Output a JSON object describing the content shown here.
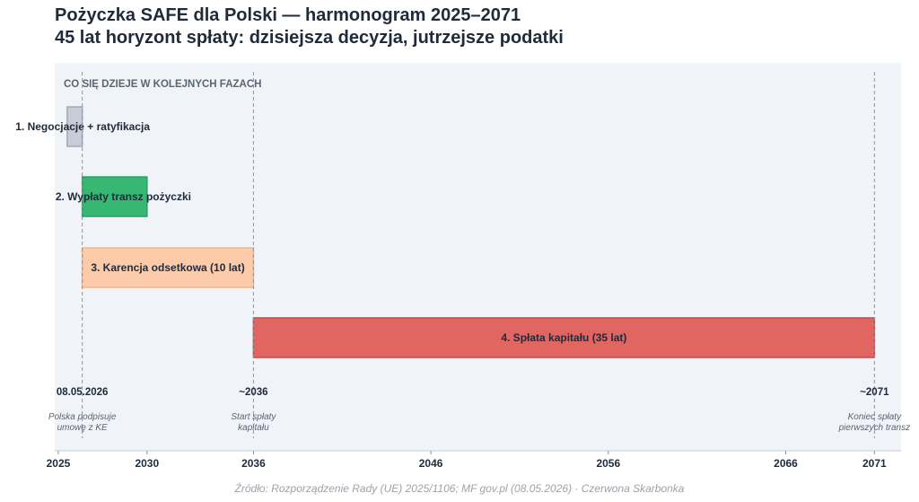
{
  "title_line1": "Pożyczka SAFE dla Polski — harmonogram 2025–2071",
  "title_line2": "45 lat horyzont spłaty: dzisiejsza decyzja, jutrzejsze podatki",
  "source": "Źródło: Rozporządzenie Rady (UE) 2025/1106; MF gov.pl (08.05.2026) · Czerwona Skarbonka",
  "chart_data": {
    "type": "gantt",
    "section_label": "CO SIĘ DZIEJE W KOLEJNYCH FAZACH",
    "x_range": [
      2024.8,
      2072.5
    ],
    "x_ticks": [
      2025,
      2030,
      2036,
      2046,
      2056,
      2066,
      2071
    ],
    "phases": [
      {
        "label": "1. Negocjacje + ratyfikacja",
        "start": 2025.5,
        "end": 2026.35,
        "color": "#c3c9d3",
        "label_position": "left"
      },
      {
        "label": "2. Wypłaty transz pożyczki",
        "start": 2026.35,
        "end": 2030,
        "color": "#2db56c",
        "label_position": "left"
      },
      {
        "label": "3. Karencja odsetkowa (10 lat)",
        "start": 2026.35,
        "end": 2036,
        "color": "#fdc9a5",
        "label_position": "inside"
      },
      {
        "label": "4. Spłata kapitału (35 lat)",
        "start": 2036,
        "end": 2071,
        "color": "#e15e5a",
        "label_position": "inside"
      }
    ],
    "markers": [
      {
        "x": 2026.35,
        "label": "08.05.2026",
        "note_line1": "Polska podpisuje",
        "note_line2": "umowę z KE"
      },
      {
        "x": 2036,
        "label": "~2036",
        "note_line1": "Start spłaty",
        "note_line2": "kapitału"
      },
      {
        "x": 2071,
        "label": "~2071",
        "note_line1": "Koniec spłaty",
        "note_line2": "pierwszych transz"
      }
    ],
    "colors": {
      "plot_bg": "#f0f3f7",
      "marker_line": "#8a94a3",
      "axis": "#c8ced6"
    }
  }
}
